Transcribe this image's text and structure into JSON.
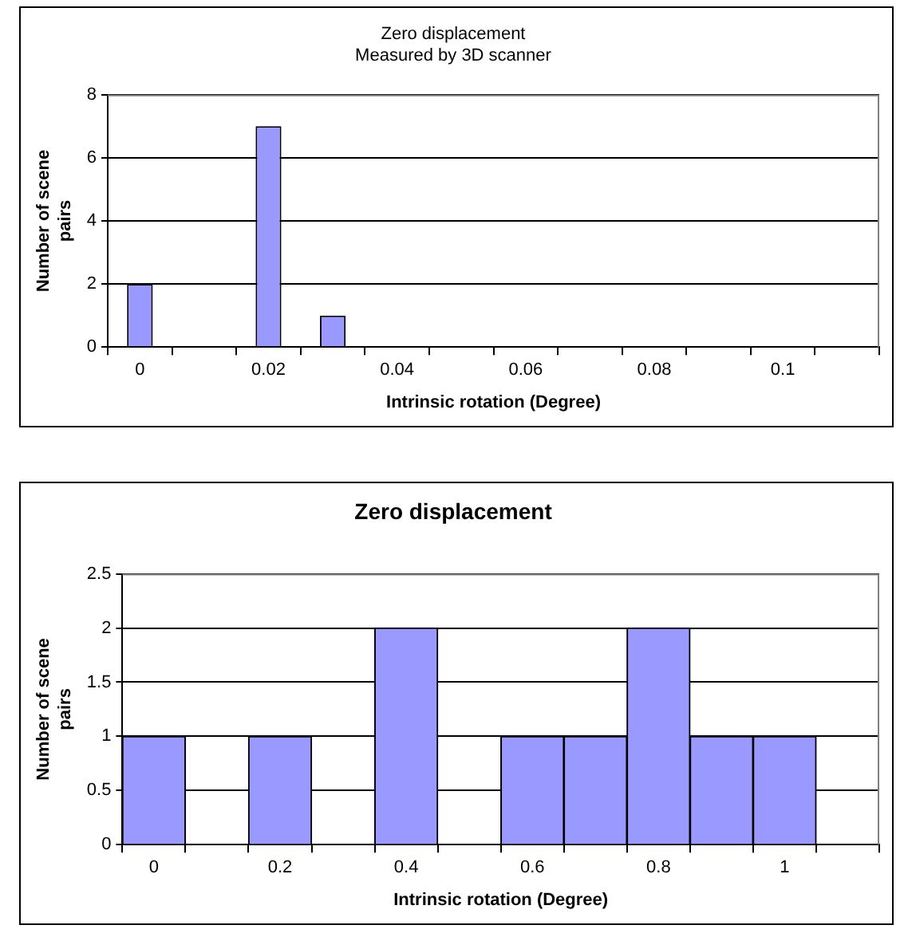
{
  "chart_data": [
    {
      "type": "bar",
      "title": "Zero displacement",
      "subtitle": "Measured by 3D scanner",
      "xlabel": "Intrinsic rotation (Degree)",
      "ylabel": "Number of scene pairs",
      "categories": [
        "0",
        null,
        "0.02",
        null,
        "0.04",
        null,
        "0.06",
        null,
        "0.08",
        null,
        "0.1",
        null
      ],
      "values": [
        2,
        0,
        7,
        1,
        0,
        0,
        0,
        0,
        0,
        0,
        0,
        0
      ],
      "color": "#9999ff",
      "ylim": [
        0,
        8
      ],
      "yticks": [
        0,
        2,
        4,
        6,
        8
      ],
      "grid": "y",
      "legend": false
    },
    {
      "type": "bar",
      "title": "Zero displacement",
      "xlabel": "Intrinsic rotation (Degree)",
      "ylabel": "Number of scene pairs",
      "categories": [
        "0",
        null,
        "0.2",
        null,
        "0.4",
        null,
        "0.6",
        null,
        "0.8",
        null,
        "1",
        null
      ],
      "values": [
        1,
        0,
        1,
        0,
        2,
        0,
        1,
        1,
        2,
        1,
        1,
        0
      ],
      "color": "#9999ff",
      "ylim": [
        0,
        2.5
      ],
      "yticks": [
        0,
        0.5,
        1,
        1.5,
        2,
        2.5
      ],
      "grid": "y",
      "legend": false
    }
  ]
}
